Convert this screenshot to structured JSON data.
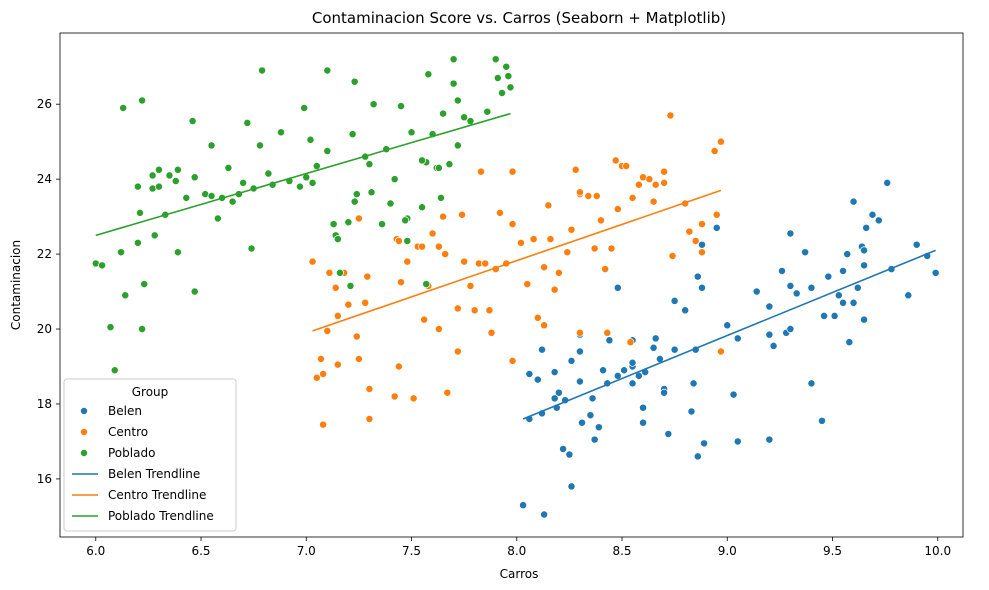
{
  "chart_data": {
    "type": "scatter",
    "title": "Contaminacion Score vs. Carros (Seaborn + Matplotlib)",
    "xlabel": "Carros",
    "ylabel": "Contaminacion",
    "xlim": [
      5.83,
      10.12
    ],
    "ylim": [
      14.45,
      27.9
    ],
    "xticks": [
      "6.0",
      "6.5",
      "7.0",
      "7.5",
      "8.0",
      "8.5",
      "9.0",
      "9.5",
      "10.0"
    ],
    "yticks": [
      "16",
      "18",
      "20",
      "22",
      "24",
      "26"
    ],
    "grid": false,
    "legend": {
      "title": "Group",
      "placement": "lower-left"
    },
    "series": [
      {
        "name": "Belen",
        "color": "#1f77b4",
        "points": [
          [
            8.03,
            15.3
          ],
          [
            8.13,
            15.05
          ],
          [
            8.26,
            15.8
          ],
          [
            8.25,
            16.65
          ],
          [
            8.22,
            16.8
          ],
          [
            8.37,
            17.05
          ],
          [
            8.39,
            17.38
          ],
          [
            8.06,
            17.6
          ],
          [
            8.12,
            17.75
          ],
          [
            8.19,
            17.9
          ],
          [
            8.23,
            18.1
          ],
          [
            8.2,
            18.3
          ],
          [
            8.18,
            18.15
          ],
          [
            8.35,
            17.7
          ],
          [
            8.31,
            17.5
          ],
          [
            8.06,
            18.8
          ],
          [
            8.1,
            18.65
          ],
          [
            8.18,
            18.85
          ],
          [
            8.3,
            18.6
          ],
          [
            8.26,
            19.15
          ],
          [
            8.3,
            19.4
          ],
          [
            8.36,
            18.15
          ],
          [
            8.41,
            18.9
          ],
          [
            8.48,
            18.75
          ],
          [
            8.51,
            18.9
          ],
          [
            8.55,
            19.0
          ],
          [
            8.55,
            19.1
          ],
          [
            8.55,
            18.55
          ],
          [
            8.58,
            18.75
          ],
          [
            8.6,
            17.9
          ],
          [
            8.6,
            17.5
          ],
          [
            8.55,
            19.7
          ],
          [
            8.65,
            19.5
          ],
          [
            8.66,
            19.75
          ],
          [
            8.68,
            19.2
          ],
          [
            8.7,
            18.4
          ],
          [
            8.7,
            18.3
          ],
          [
            8.72,
            17.2
          ],
          [
            8.75,
            20.75
          ],
          [
            8.75,
            19.45
          ],
          [
            8.8,
            20.5
          ],
          [
            8.83,
            17.8
          ],
          [
            8.84,
            18.55
          ],
          [
            8.86,
            16.6
          ],
          [
            8.89,
            16.95
          ],
          [
            8.86,
            21.4
          ],
          [
            8.88,
            21.1
          ],
          [
            8.85,
            19.45
          ],
          [
            8.95,
            22.7
          ],
          [
            9.0,
            20.1
          ],
          [
            9.03,
            18.25
          ],
          [
            9.05,
            17.0
          ],
          [
            9.05,
            19.75
          ],
          [
            9.14,
            21.0
          ],
          [
            9.2,
            17.05
          ],
          [
            9.2,
            19.85
          ],
          [
            9.2,
            20.6
          ],
          [
            9.22,
            19.55
          ],
          [
            9.26,
            21.55
          ],
          [
            9.28,
            19.9
          ],
          [
            9.3,
            22.55
          ],
          [
            9.3,
            21.15
          ],
          [
            9.3,
            20.0
          ],
          [
            9.33,
            20.95
          ],
          [
            9.37,
            22.05
          ],
          [
            9.4,
            18.55
          ],
          [
            9.4,
            21.1
          ],
          [
            9.45,
            17.55
          ],
          [
            9.46,
            20.35
          ],
          [
            9.48,
            21.4
          ],
          [
            9.51,
            20.35
          ],
          [
            9.53,
            20.9
          ],
          [
            9.55,
            21.55
          ],
          [
            9.55,
            20.7
          ],
          [
            9.57,
            22.0
          ],
          [
            9.58,
            19.65
          ],
          [
            9.6,
            20.7
          ],
          [
            9.6,
            23.4
          ],
          [
            9.62,
            21.1
          ],
          [
            9.65,
            21.7
          ],
          [
            9.64,
            22.2
          ],
          [
            9.65,
            22.1
          ],
          [
            9.65,
            20.25
          ],
          [
            9.66,
            22.7
          ],
          [
            9.69,
            23.05
          ],
          [
            9.72,
            22.9
          ],
          [
            9.76,
            23.9
          ],
          [
            9.78,
            21.6
          ],
          [
            9.86,
            20.9
          ],
          [
            9.9,
            22.25
          ],
          [
            9.95,
            21.95
          ],
          [
            9.99,
            21.5
          ],
          [
            8.55,
            18.55
          ],
          [
            8.43,
            18.55
          ],
          [
            8.61,
            18.85
          ],
          [
            8.44,
            19.7
          ],
          [
            8.48,
            21.1
          ],
          [
            8.88,
            22.25
          ],
          [
            8.3,
            19.85
          ],
          [
            8.12,
            19.45
          ]
        ]
      },
      {
        "name": "Centro",
        "color": "#ff7f0e",
        "points": [
          [
            7.08,
            17.45
          ],
          [
            7.3,
            17.6
          ],
          [
            7.3,
            18.4
          ],
          [
            7.42,
            18.2
          ],
          [
            7.51,
            18.15
          ],
          [
            7.44,
            19.0
          ],
          [
            7.25,
            19.2
          ],
          [
            7.07,
            19.2
          ],
          [
            7.05,
            18.7
          ],
          [
            7.08,
            18.8
          ],
          [
            7.15,
            19.05
          ],
          [
            7.1,
            19.95
          ],
          [
            7.24,
            19.8
          ],
          [
            7.15,
            20.35
          ],
          [
            7.2,
            20.65
          ],
          [
            7.28,
            20.7
          ],
          [
            7.29,
            21.4
          ],
          [
            7.14,
            21.1
          ],
          [
            7.11,
            21.5
          ],
          [
            7.18,
            21.5
          ],
          [
            7.03,
            21.8
          ],
          [
            7.25,
            22.95
          ],
          [
            7.45,
            21.25
          ],
          [
            7.48,
            21.8
          ],
          [
            7.53,
            22.2
          ],
          [
            7.55,
            22.2
          ],
          [
            7.43,
            22.4
          ],
          [
            7.44,
            22.35
          ],
          [
            7.56,
            20.25
          ],
          [
            7.63,
            22.2
          ],
          [
            7.66,
            22.0
          ],
          [
            7.6,
            22.55
          ],
          [
            7.63,
            20.0
          ],
          [
            7.67,
            18.3
          ],
          [
            7.72,
            19.4
          ],
          [
            7.72,
            20.55
          ],
          [
            7.75,
            21.8
          ],
          [
            7.78,
            21.15
          ],
          [
            7.8,
            20.5
          ],
          [
            7.82,
            21.75
          ],
          [
            7.85,
            21.75
          ],
          [
            7.88,
            19.9
          ],
          [
            7.87,
            20.5
          ],
          [
            7.9,
            21.6
          ],
          [
            7.95,
            21.75
          ],
          [
            7.98,
            19.15
          ],
          [
            7.98,
            22.8
          ],
          [
            8.02,
            22.3
          ],
          [
            8.05,
            21.2
          ],
          [
            8.08,
            22.4
          ],
          [
            8.1,
            20.3
          ],
          [
            8.13,
            21.65
          ],
          [
            8.13,
            20.1
          ],
          [
            8.18,
            21.05
          ],
          [
            8.2,
            21.5
          ],
          [
            8.24,
            22.05
          ],
          [
            8.26,
            22.65
          ],
          [
            8.3,
            23.6
          ],
          [
            8.3,
            23.65
          ],
          [
            8.34,
            23.55
          ],
          [
            8.37,
            22.15
          ],
          [
            8.4,
            22.9
          ],
          [
            8.42,
            21.6
          ],
          [
            8.45,
            22.15
          ],
          [
            8.48,
            23.2
          ],
          [
            8.5,
            24.35
          ],
          [
            8.52,
            24.35
          ],
          [
            8.55,
            23.5
          ],
          [
            8.58,
            23.85
          ],
          [
            8.6,
            24.05
          ],
          [
            8.63,
            24.0
          ],
          [
            8.65,
            23.4
          ],
          [
            8.66,
            23.85
          ],
          [
            8.7,
            23.9
          ],
          [
            8.74,
            21.95
          ],
          [
            8.73,
            25.7
          ],
          [
            8.8,
            23.35
          ],
          [
            8.82,
            22.6
          ],
          [
            8.85,
            22.35
          ],
          [
            8.88,
            22.05
          ],
          [
            8.88,
            22.8
          ],
          [
            8.94,
            24.75
          ],
          [
            8.95,
            23.05
          ],
          [
            8.97,
            25.0
          ],
          [
            8.97,
            19.4
          ],
          [
            8.54,
            19.65
          ],
          [
            8.43,
            19.9
          ],
          [
            8.3,
            19.9
          ],
          [
            7.74,
            23.05
          ],
          [
            7.65,
            23.0
          ],
          [
            7.58,
            21.15
          ],
          [
            7.83,
            24.2
          ],
          [
            7.98,
            24.2
          ],
          [
            8.15,
            23.3
          ],
          [
            8.28,
            24.25
          ],
          [
            8.47,
            24.5
          ],
          [
            8.7,
            24.2
          ],
          [
            8.38,
            23.55
          ],
          [
            7.92,
            23.1
          ],
          [
            8.16,
            22.4
          ]
        ]
      },
      {
        "name": "Poblado",
        "color": "#2ca02c",
        "points": [
          [
            6.0,
            21.75
          ],
          [
            6.03,
            21.7
          ],
          [
            6.07,
            20.05
          ],
          [
            6.09,
            18.9
          ],
          [
            6.12,
            22.05
          ],
          [
            6.14,
            20.9
          ],
          [
            6.13,
            25.9
          ],
          [
            6.2,
            23.8
          ],
          [
            6.22,
            26.1
          ],
          [
            6.22,
            20.0
          ],
          [
            6.2,
            22.3
          ],
          [
            6.23,
            21.2
          ],
          [
            6.27,
            23.75
          ],
          [
            6.27,
            24.1
          ],
          [
            6.3,
            24.25
          ],
          [
            6.28,
            22.5
          ],
          [
            6.33,
            23.05
          ],
          [
            6.35,
            24.1
          ],
          [
            6.38,
            23.95
          ],
          [
            6.39,
            24.25
          ],
          [
            6.39,
            22.05
          ],
          [
            6.43,
            23.5
          ],
          [
            6.46,
            25.55
          ],
          [
            6.47,
            24.05
          ],
          [
            6.47,
            21.0
          ],
          [
            6.52,
            23.6
          ],
          [
            6.55,
            24.9
          ],
          [
            6.58,
            22.95
          ],
          [
            6.6,
            23.5
          ],
          [
            6.63,
            24.3
          ],
          [
            6.65,
            23.4
          ],
          [
            6.68,
            23.6
          ],
          [
            6.7,
            23.9
          ],
          [
            6.72,
            25.5
          ],
          [
            6.74,
            22.15
          ],
          [
            6.75,
            23.75
          ],
          [
            6.78,
            24.9
          ],
          [
            6.79,
            26.9
          ],
          [
            6.82,
            24.15
          ],
          [
            6.84,
            23.85
          ],
          [
            6.88,
            25.25
          ],
          [
            6.92,
            23.95
          ],
          [
            6.97,
            23.8
          ],
          [
            6.99,
            25.9
          ],
          [
            7.0,
            24.05
          ],
          [
            7.02,
            25.05
          ],
          [
            7.03,
            23.9
          ],
          [
            7.05,
            24.35
          ],
          [
            7.1,
            24.75
          ],
          [
            7.1,
            26.9
          ],
          [
            7.13,
            22.8
          ],
          [
            7.14,
            22.5
          ],
          [
            7.16,
            21.5
          ],
          [
            7.2,
            22.85
          ],
          [
            7.21,
            21.15
          ],
          [
            7.22,
            25.2
          ],
          [
            7.23,
            23.4
          ],
          [
            7.23,
            26.6
          ],
          [
            7.24,
            23.6
          ],
          [
            7.28,
            24.6
          ],
          [
            7.3,
            24.4
          ],
          [
            7.31,
            23.65
          ],
          [
            7.32,
            26.0
          ],
          [
            7.36,
            22.8
          ],
          [
            7.38,
            24.8
          ],
          [
            7.4,
            23.35
          ],
          [
            7.42,
            24.0
          ],
          [
            7.45,
            25.95
          ],
          [
            7.48,
            22.35
          ],
          [
            7.48,
            22.95
          ],
          [
            7.5,
            25.25
          ],
          [
            7.55,
            23.25
          ],
          [
            7.57,
            24.45
          ],
          [
            7.58,
            26.8
          ],
          [
            7.6,
            25.2
          ],
          [
            7.62,
            24.3
          ],
          [
            7.64,
            23.5
          ],
          [
            7.65,
            25.75
          ],
          [
            7.68,
            24.4
          ],
          [
            7.7,
            27.2
          ],
          [
            7.7,
            26.55
          ],
          [
            7.72,
            26.1
          ],
          [
            7.75,
            25.65
          ],
          [
            7.78,
            25.55
          ],
          [
            7.86,
            25.8
          ],
          [
            7.9,
            27.2
          ],
          [
            7.91,
            26.7
          ],
          [
            7.93,
            26.3
          ],
          [
            7.95,
            27.0
          ],
          [
            7.96,
            26.75
          ],
          [
            7.97,
            26.45
          ],
          [
            7.57,
            21.2
          ],
          [
            7.72,
            24.9
          ],
          [
            7.55,
            24.5
          ],
          [
            7.47,
            22.9
          ],
          [
            7.63,
            24.3
          ],
          [
            7.15,
            22.4
          ],
          [
            6.55,
            23.55
          ],
          [
            6.3,
            23.8
          ],
          [
            6.21,
            23.1
          ]
        ]
      }
    ],
    "trendlines": [
      {
        "name": "Belen Trendline",
        "color": "#1f77b4",
        "x": [
          8.03,
          9.99
        ],
        "y": [
          17.6,
          22.1
        ]
      },
      {
        "name": "Centro Trendline",
        "color": "#ff7f0e",
        "x": [
          7.03,
          8.97
        ],
        "y": [
          19.95,
          23.7
        ]
      },
      {
        "name": "Poblado Trendline",
        "color": "#2ca02c",
        "x": [
          6.0,
          7.97
        ],
        "y": [
          22.5,
          25.75
        ]
      }
    ]
  }
}
